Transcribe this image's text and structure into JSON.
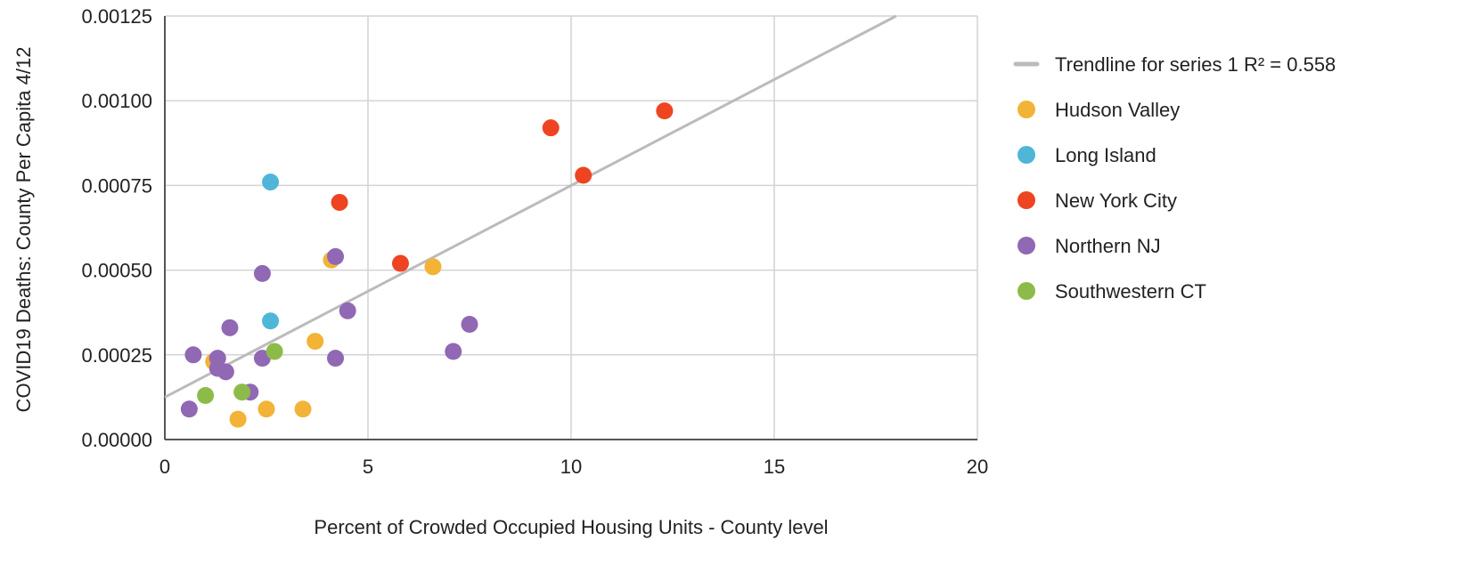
{
  "chart_data": {
    "type": "scatter",
    "xlabel": "Percent of Crowded Occupied Housing Units  - County level",
    "ylabel": "COVID19 Deaths: County Per Capita 4/12",
    "xlim": [
      0,
      20
    ],
    "ylim": [
      0,
      0.00125
    ],
    "x_ticks": [
      0,
      5,
      10,
      15,
      20
    ],
    "x_tick_labels": [
      "0",
      "5",
      "10",
      "15",
      "20"
    ],
    "y_ticks": [
      0,
      0.00025,
      0.0005,
      0.00075,
      0.001,
      0.00125
    ],
    "y_tick_labels": [
      "0.00000",
      "0.00025",
      "0.00050",
      "0.00075",
      "0.00100",
      "0.00125"
    ],
    "grid": true,
    "legend_position": "right",
    "trendline": {
      "label": "Trendline for series 1 R² = 0.558",
      "color": "#bbbbbb",
      "x": [
        0,
        18
      ],
      "y": [
        0.000125,
        0.00125
      ]
    },
    "series": [
      {
        "name": "Hudson Valley",
        "color": "#f2b336",
        "points": [
          {
            "x": 4.1,
            "y": 0.00053
          },
          {
            "x": 6.6,
            "y": 0.00051
          },
          {
            "x": 3.7,
            "y": 0.00029
          },
          {
            "x": 1.2,
            "y": 0.00023
          },
          {
            "x": 2.5,
            "y": 9e-05
          },
          {
            "x": 3.4,
            "y": 9e-05
          },
          {
            "x": 1.8,
            "y": 6e-05
          }
        ]
      },
      {
        "name": "Long Island",
        "color": "#4fb6d8",
        "points": [
          {
            "x": 2.6,
            "y": 0.00076
          },
          {
            "x": 2.6,
            "y": 0.00035
          }
        ]
      },
      {
        "name": "New York City",
        "color": "#ee4422",
        "points": [
          {
            "x": 12.3,
            "y": 0.00097
          },
          {
            "x": 9.5,
            "y": 0.00092
          },
          {
            "x": 10.3,
            "y": 0.00078
          },
          {
            "x": 4.3,
            "y": 0.0007
          },
          {
            "x": 5.8,
            "y": 0.00052
          }
        ]
      },
      {
        "name": "Northern NJ",
        "color": "#9068b4",
        "points": [
          {
            "x": 4.2,
            "y": 0.00054
          },
          {
            "x": 2.4,
            "y": 0.00049
          },
          {
            "x": 4.5,
            "y": 0.00038
          },
          {
            "x": 7.5,
            "y": 0.00034
          },
          {
            "x": 1.6,
            "y": 0.00033
          },
          {
            "x": 7.1,
            "y": 0.00026
          },
          {
            "x": 0.7,
            "y": 0.00025
          },
          {
            "x": 1.3,
            "y": 0.00024
          },
          {
            "x": 2.4,
            "y": 0.00024
          },
          {
            "x": 4.2,
            "y": 0.00024
          },
          {
            "x": 1.3,
            "y": 0.00021
          },
          {
            "x": 1.5,
            "y": 0.0002
          },
          {
            "x": 2.1,
            "y": 0.00014
          },
          {
            "x": 0.6,
            "y": 9e-05
          }
        ]
      },
      {
        "name": "Southwestern CT",
        "color": "#8dbb4a",
        "points": [
          {
            "x": 2.7,
            "y": 0.00026
          },
          {
            "x": 1.9,
            "y": 0.00014
          },
          {
            "x": 1.0,
            "y": 0.00013
          }
        ]
      }
    ]
  }
}
